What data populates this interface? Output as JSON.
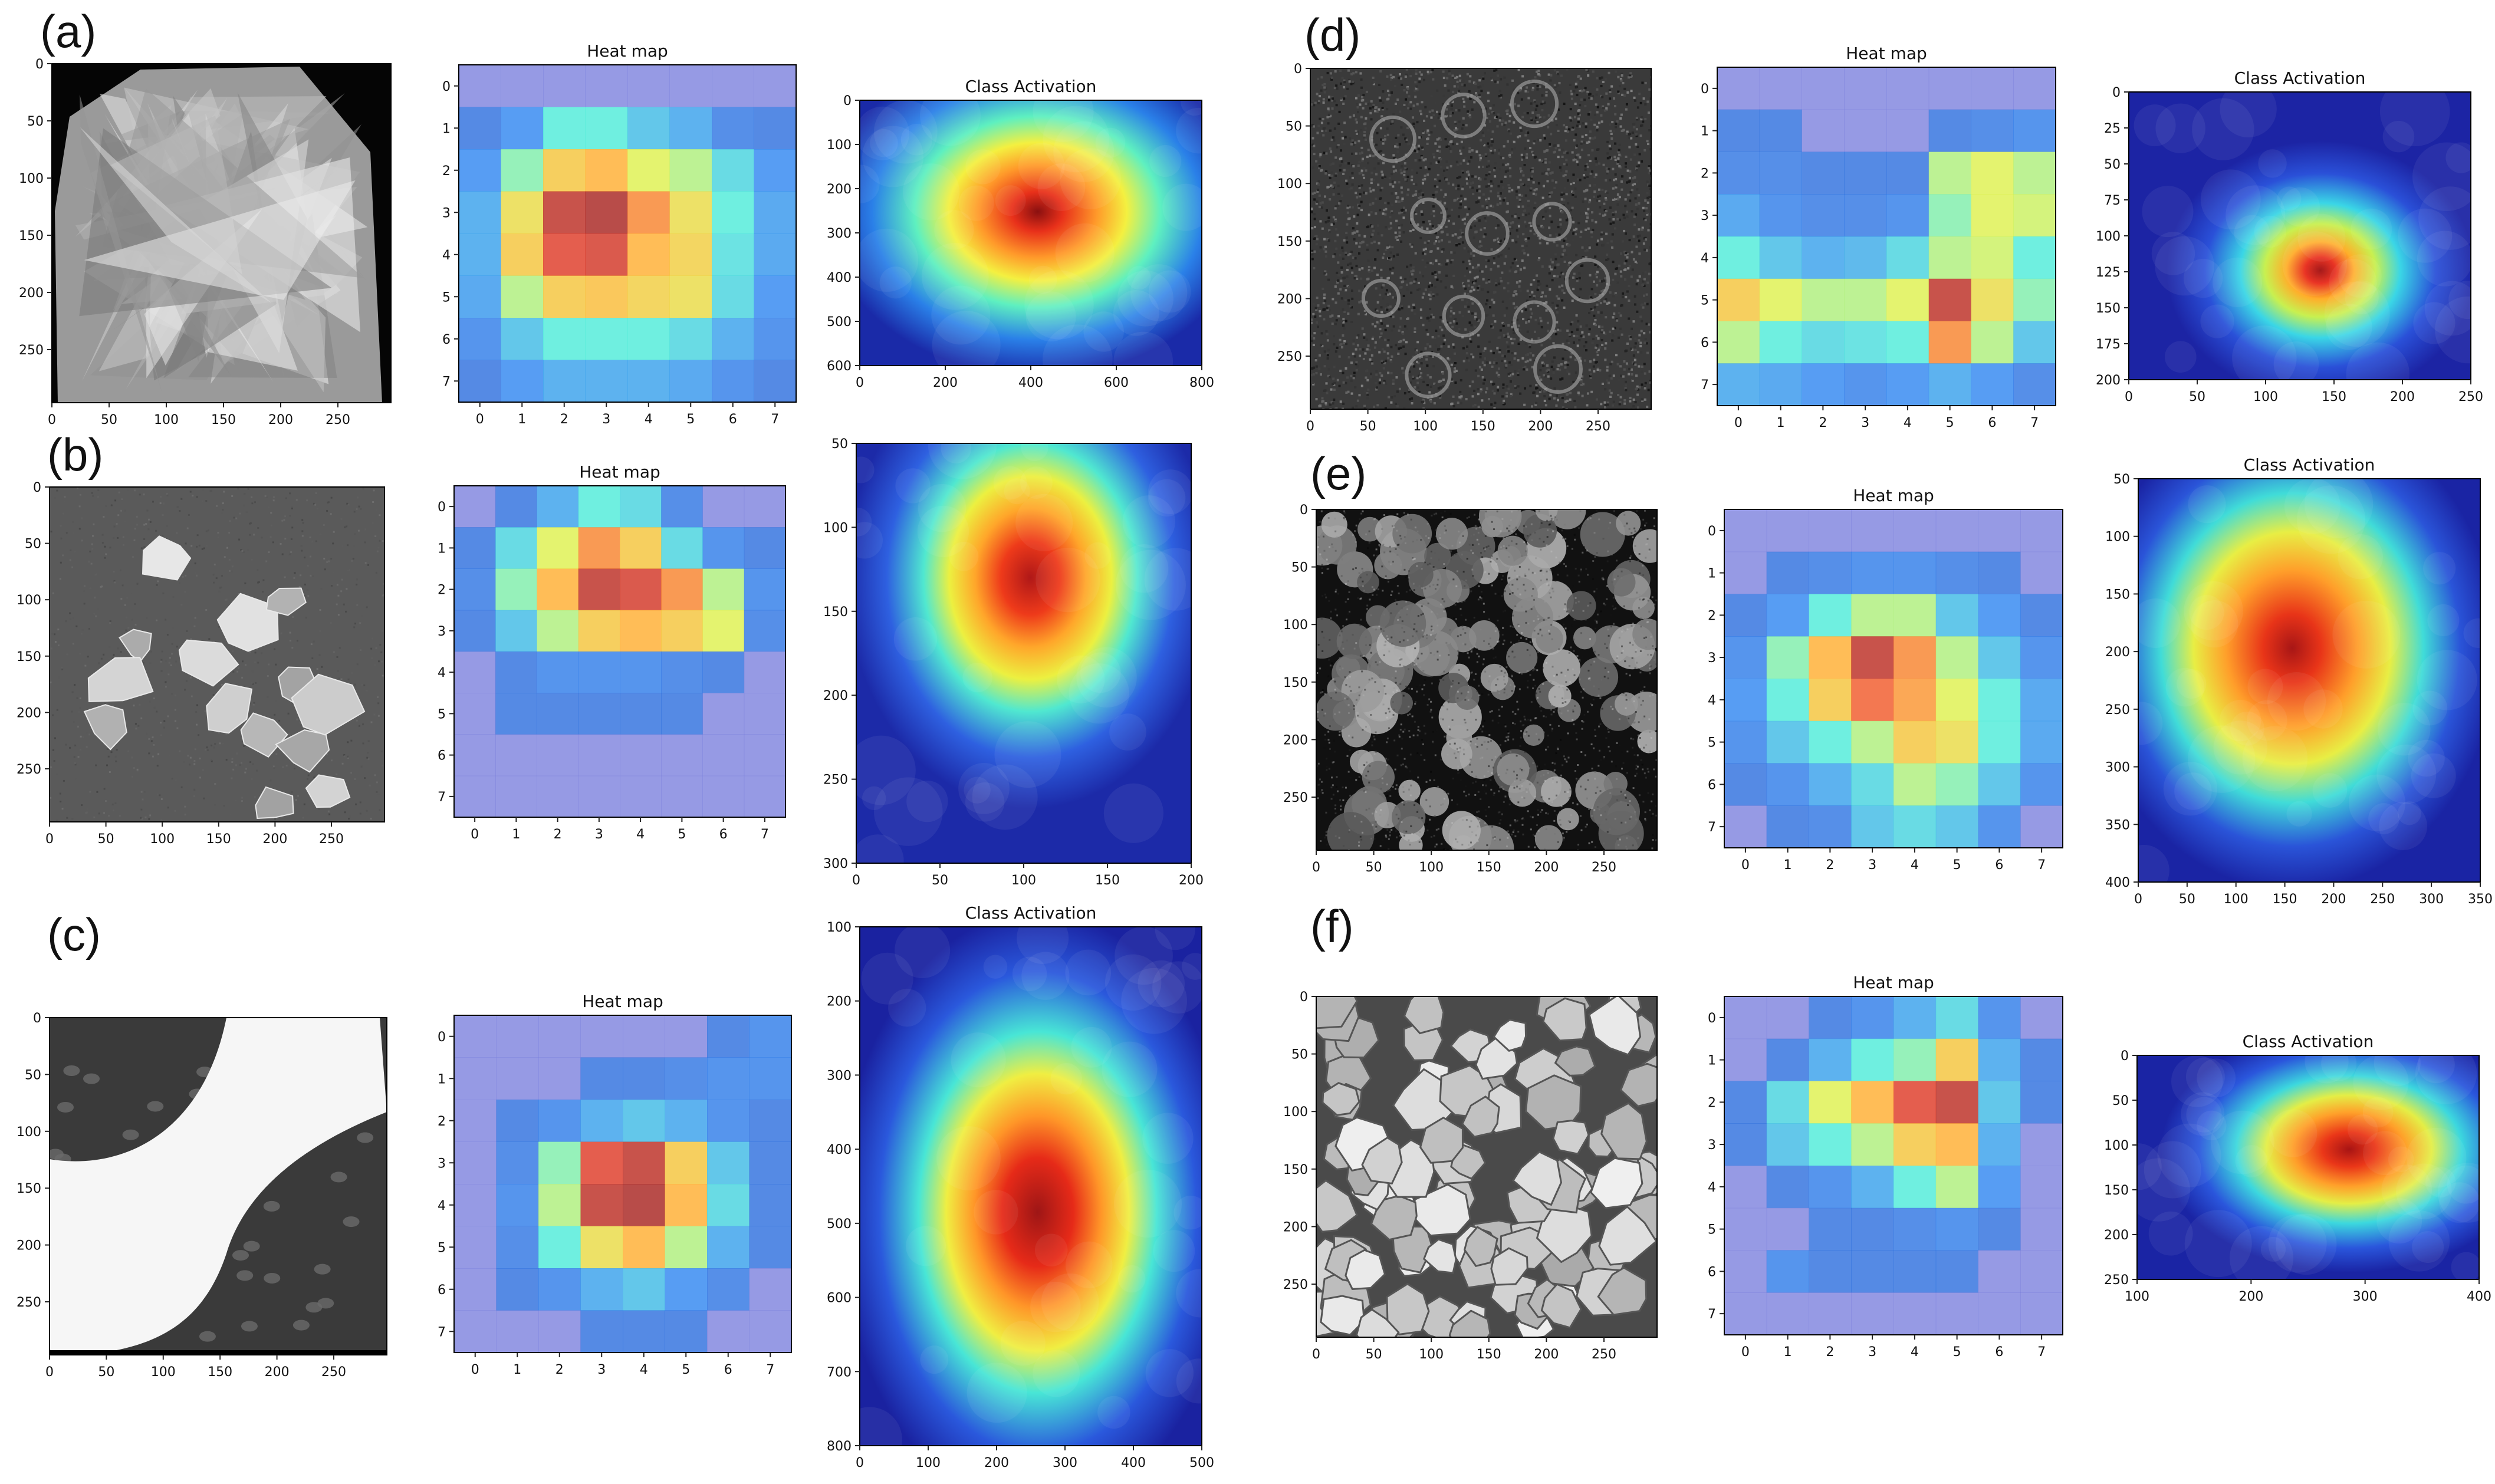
{
  "figure": {
    "rows": [
      {
        "label": "(a)",
        "sem": {
          "texture": "crystal",
          "x_ticks": [
            "0",
            "50",
            "100",
            "150",
            "200",
            "250"
          ],
          "y_ticks": [
            "0",
            "50",
            "100",
            "150",
            "200",
            "250"
          ]
        },
        "heat": {
          "title": "Heat map",
          "x_ticks": [
            "0",
            "1",
            "2",
            "3",
            "4",
            "5",
            "6",
            "7"
          ],
          "y_ticks": [
            "0",
            "1",
            "2",
            "3",
            "4",
            "5",
            "6",
            "7"
          ],
          "grid": [
            [
              0.15,
              0.15,
              0.15,
              0.15,
              0.15,
              0.15,
              0.15,
              0.15
            ],
            [
              0.18,
              0.25,
              0.45,
              0.45,
              0.35,
              0.3,
              0.2,
              0.18
            ],
            [
              0.25,
              0.5,
              0.7,
              0.75,
              0.6,
              0.55,
              0.4,
              0.25
            ],
            [
              0.3,
              0.65,
              0.95,
              0.98,
              0.8,
              0.65,
              0.45,
              0.28
            ],
            [
              0.3,
              0.7,
              0.9,
              0.92,
              0.75,
              0.68,
              0.42,
              0.28
            ],
            [
              0.28,
              0.55,
              0.7,
              0.72,
              0.68,
              0.65,
              0.4,
              0.25
            ],
            [
              0.22,
              0.35,
              0.45,
              0.45,
              0.45,
              0.4,
              0.3,
              0.22
            ],
            [
              0.18,
              0.25,
              0.3,
              0.3,
              0.3,
              0.28,
              0.22,
              0.18
            ]
          ]
        },
        "cam": {
          "title": "Class Activation",
          "x_ticks": [
            "0",
            "200",
            "400",
            "600",
            "800"
          ],
          "y_ticks": [
            "0",
            "100",
            "200",
            "300",
            "400",
            "500",
            "600"
          ]
        }
      },
      {
        "label": "(b)",
        "sem": {
          "texture": "flakes",
          "x_ticks": [
            "0",
            "50",
            "100",
            "150",
            "200",
            "250"
          ],
          "y_ticks": [
            "0",
            "50",
            "100",
            "150",
            "200",
            "250"
          ]
        },
        "heat": {
          "title": "Heat map",
          "x_ticks": [
            "0",
            "1",
            "2",
            "3",
            "4",
            "5",
            "6",
            "7"
          ],
          "y_ticks": [
            "0",
            "1",
            "2",
            "3",
            "4",
            "5",
            "6",
            "7"
          ],
          "grid": [
            [
              0.15,
              0.18,
              0.3,
              0.45,
              0.4,
              0.2,
              0.15,
              0.15
            ],
            [
              0.18,
              0.4,
              0.6,
              0.8,
              0.7,
              0.4,
              0.22,
              0.18
            ],
            [
              0.2,
              0.5,
              0.75,
              0.95,
              0.92,
              0.8,
              0.55,
              0.22
            ],
            [
              0.18,
              0.35,
              0.55,
              0.7,
              0.75,
              0.7,
              0.6,
              0.2
            ],
            [
              0.15,
              0.18,
              0.22,
              0.22,
              0.22,
              0.2,
              0.18,
              0.15
            ],
            [
              0.15,
              0.18,
              0.18,
              0.18,
              0.18,
              0.18,
              0.15,
              0.15
            ],
            [
              0.15,
              0.15,
              0.15,
              0.15,
              0.15,
              0.15,
              0.15,
              0.15
            ],
            [
              0.15,
              0.15,
              0.15,
              0.15,
              0.15,
              0.15,
              0.15,
              0.15
            ]
          ]
        },
        "cam": {
          "title": "",
          "x_ticks": [
            "0",
            "50",
            "100",
            "150",
            "200"
          ],
          "y_ticks": [
            "50",
            "100",
            "150",
            "200",
            "250",
            "300"
          ]
        }
      },
      {
        "label": "(c)",
        "sem": {
          "texture": "bright-band",
          "x_ticks": [
            "0",
            "50",
            "100",
            "150",
            "200",
            "250"
          ],
          "y_ticks": [
            "0",
            "50",
            "100",
            "150",
            "200",
            "250"
          ]
        },
        "heat": {
          "title": "Heat map",
          "x_ticks": [
            "0",
            "1",
            "2",
            "3",
            "4",
            "5",
            "6",
            "7"
          ],
          "y_ticks": [
            "0",
            "1",
            "2",
            "3",
            "4",
            "5",
            "6",
            "7"
          ],
          "grid": [
            [
              0.15,
              0.15,
              0.15,
              0.15,
              0.15,
              0.15,
              0.18,
              0.22
            ],
            [
              0.15,
              0.15,
              0.15,
              0.18,
              0.18,
              0.2,
              0.22,
              0.22
            ],
            [
              0.15,
              0.18,
              0.22,
              0.3,
              0.35,
              0.3,
              0.22,
              0.18
            ],
            [
              0.15,
              0.2,
              0.5,
              0.9,
              0.95,
              0.7,
              0.35,
              0.18
            ],
            [
              0.15,
              0.22,
              0.55,
              0.95,
              0.98,
              0.75,
              0.4,
              0.18
            ],
            [
              0.15,
              0.2,
              0.45,
              0.65,
              0.75,
              0.55,
              0.3,
              0.18
            ],
            [
              0.15,
              0.18,
              0.22,
              0.3,
              0.35,
              0.25,
              0.2,
              0.15
            ],
            [
              0.15,
              0.15,
              0.15,
              0.18,
              0.18,
              0.18,
              0.15,
              0.15
            ]
          ]
        },
        "cam": {
          "title": "Class Activation",
          "x_ticks": [
            "0",
            "100",
            "200",
            "300",
            "400",
            "500"
          ],
          "y_ticks": [
            "100",
            "200",
            "300",
            "400",
            "500",
            "600",
            "700",
            "800"
          ]
        }
      },
      {
        "label": "(d)",
        "sem": {
          "texture": "noise-rings",
          "x_ticks": [
            "0",
            "50",
            "100",
            "150",
            "200",
            "250"
          ],
          "y_ticks": [
            "0",
            "50",
            "100",
            "150",
            "200",
            "250"
          ]
        },
        "heat": {
          "title": "Heat map",
          "x_ticks": [
            "0",
            "1",
            "2",
            "3",
            "4",
            "5",
            "6",
            "7"
          ],
          "y_ticks": [
            "0",
            "1",
            "2",
            "3",
            "4",
            "5",
            "6",
            "7"
          ],
          "grid": [
            [
              0.15,
              0.15,
              0.15,
              0.15,
              0.15,
              0.15,
              0.15,
              0.15
            ],
            [
              0.18,
              0.18,
              0.15,
              0.15,
              0.15,
              0.18,
              0.2,
              0.22
            ],
            [
              0.2,
              0.2,
              0.18,
              0.18,
              0.18,
              0.55,
              0.6,
              0.55
            ],
            [
              0.28,
              0.22,
              0.2,
              0.2,
              0.22,
              0.5,
              0.6,
              0.58
            ],
            [
              0.45,
              0.35,
              0.3,
              0.32,
              0.4,
              0.55,
              0.58,
              0.45
            ],
            [
              0.7,
              0.6,
              0.55,
              0.55,
              0.6,
              0.95,
              0.65,
              0.5
            ],
            [
              0.55,
              0.45,
              0.4,
              0.42,
              0.45,
              0.8,
              0.55,
              0.35
            ],
            [
              0.3,
              0.28,
              0.25,
              0.22,
              0.25,
              0.3,
              0.25,
              0.2
            ]
          ]
        },
        "cam": {
          "title": "Class Activation",
          "x_ticks": [
            "0",
            "50",
            "100",
            "150",
            "200",
            "250"
          ],
          "y_ticks": [
            "0",
            "25",
            "50",
            "75",
            "100",
            "125",
            "150",
            "175",
            "200"
          ]
        }
      },
      {
        "label": "(e)",
        "sem": {
          "texture": "spheres",
          "x_ticks": [
            "0",
            "50",
            "100",
            "150",
            "200",
            "250"
          ],
          "y_ticks": [
            "0",
            "50",
            "100",
            "150",
            "200",
            "250"
          ]
        },
        "heat": {
          "title": "Heat map",
          "x_ticks": [
            "0",
            "1",
            "2",
            "3",
            "4",
            "5",
            "6",
            "7"
          ],
          "y_ticks": [
            "0",
            "1",
            "2",
            "3",
            "4",
            "5",
            "6",
            "7"
          ],
          "grid": [
            [
              0.15,
              0.15,
              0.15,
              0.15,
              0.15,
              0.15,
              0.15,
              0.15
            ],
            [
              0.15,
              0.18,
              0.2,
              0.22,
              0.22,
              0.2,
              0.18,
              0.15
            ],
            [
              0.18,
              0.25,
              0.45,
              0.55,
              0.55,
              0.35,
              0.25,
              0.18
            ],
            [
              0.22,
              0.5,
              0.75,
              0.95,
              0.8,
              0.55,
              0.35,
              0.22
            ],
            [
              0.25,
              0.45,
              0.7,
              0.85,
              0.78,
              0.6,
              0.45,
              0.28
            ],
            [
              0.22,
              0.35,
              0.45,
              0.55,
              0.7,
              0.65,
              0.45,
              0.28
            ],
            [
              0.18,
              0.22,
              0.3,
              0.4,
              0.55,
              0.5,
              0.35,
              0.22
            ],
            [
              0.15,
              0.18,
              0.2,
              0.35,
              0.4,
              0.35,
              0.22,
              0.15
            ]
          ]
        },
        "cam": {
          "title": "Class Activation",
          "x_ticks": [
            "0",
            "50",
            "100",
            "150",
            "200",
            "250",
            "300",
            "350"
          ],
          "y_ticks": [
            "50",
            "100",
            "150",
            "200",
            "250",
            "300",
            "350",
            "400"
          ]
        }
      },
      {
        "label": "(f)",
        "sem": {
          "texture": "grains",
          "x_ticks": [
            "0",
            "50",
            "100",
            "150",
            "200",
            "250"
          ],
          "y_ticks": [
            "0",
            "50",
            "100",
            "150",
            "200",
            "250"
          ]
        },
        "heat": {
          "title": "Heat map",
          "x_ticks": [
            "0",
            "1",
            "2",
            "3",
            "4",
            "5",
            "6",
            "7"
          ],
          "y_ticks": [
            "0",
            "1",
            "2",
            "3",
            "4",
            "5",
            "6",
            "7"
          ],
          "grid": [
            [
              0.15,
              0.15,
              0.18,
              0.22,
              0.3,
              0.4,
              0.22,
              0.15
            ],
            [
              0.15,
              0.18,
              0.3,
              0.45,
              0.5,
              0.7,
              0.3,
              0.18
            ],
            [
              0.18,
              0.4,
              0.6,
              0.75,
              0.9,
              0.95,
              0.35,
              0.18
            ],
            [
              0.18,
              0.35,
              0.45,
              0.55,
              0.7,
              0.75,
              0.3,
              0.15
            ],
            [
              0.15,
              0.18,
              0.22,
              0.3,
              0.45,
              0.55,
              0.25,
              0.15
            ],
            [
              0.15,
              0.15,
              0.18,
              0.18,
              0.2,
              0.22,
              0.18,
              0.15
            ],
            [
              0.15,
              0.22,
              0.18,
              0.18,
              0.18,
              0.18,
              0.15,
              0.15
            ],
            [
              0.15,
              0.15,
              0.15,
              0.15,
              0.15,
              0.15,
              0.15,
              0.15
            ]
          ]
        },
        "cam": {
          "title": "Class Activation",
          "x_ticks": [
            "100",
            "200",
            "300",
            "400"
          ],
          "y_ticks": [
            "0",
            "50",
            "100",
            "150",
            "200",
            "250"
          ]
        }
      }
    ]
  }
}
